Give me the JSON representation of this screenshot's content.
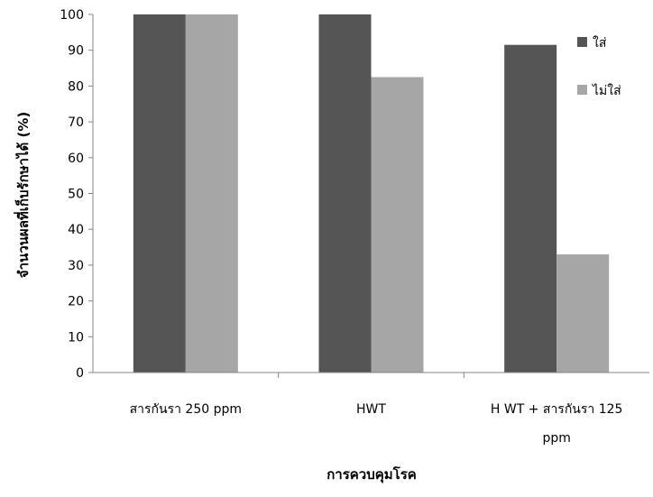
{
  "chart_data": {
    "type": "bar",
    "categories": [
      "สารกันรา 250 ppm",
      "HWT",
      "H WT + สารกันรา 125 ppm"
    ],
    "category_lines": [
      [
        "สารกันรา 250 ppm"
      ],
      [
        "HWT"
      ],
      [
        "H WT + สารกันรา 125",
        "ppm"
      ]
    ],
    "series": [
      {
        "name": "ใส่",
        "values": [
          100,
          100,
          91.5
        ],
        "color": "#555555"
      },
      {
        "name": "ไม่ใส่",
        "values": [
          100,
          82.5,
          33
        ],
        "color": "#a6a6a6"
      }
    ],
    "xlabel": "การควบคุมโรค",
    "ylabel": "จำนวนผลที่เก็บรักษาได้ (%)",
    "ylim": [
      0,
      100
    ],
    "yticks": [
      0,
      10,
      20,
      30,
      40,
      50,
      60,
      70,
      80,
      90,
      100
    ],
    "grid": false,
    "legend_position": "top-right"
  }
}
